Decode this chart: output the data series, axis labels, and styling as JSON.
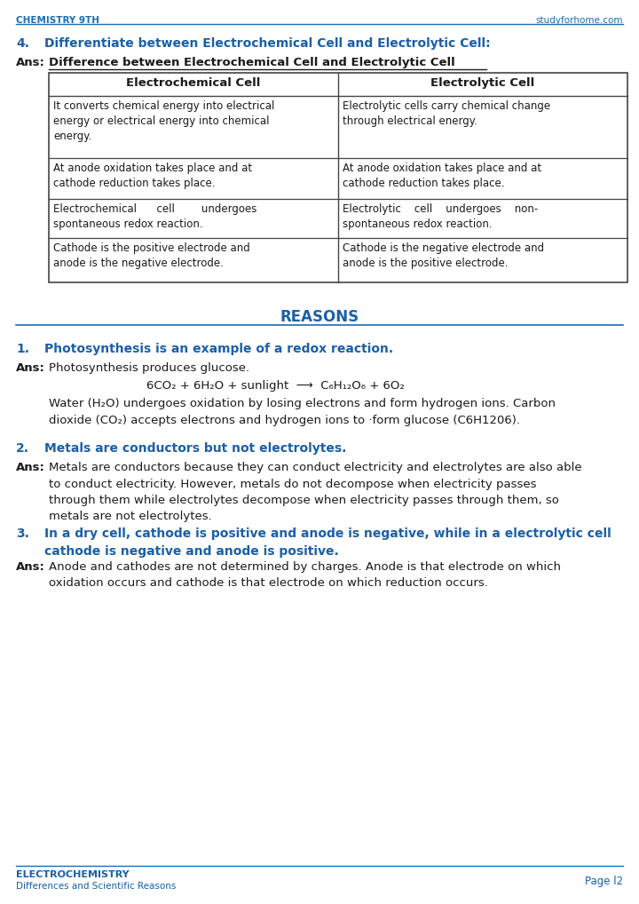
{
  "page_bg": "#ffffff",
  "header_text_left": "CHEMISTRY 9TH",
  "header_text_right": "studyforhome.com",
  "header_color": "#1a6db5",
  "header_line_color": "#1a6db5",
  "q_number": "4.",
  "q_text": "Differentiate between Electrochemical Cell and Electrolytic Cell:",
  "q_color": "#1a5fa8",
  "ans_label": "Ans:",
  "ans_underline_text": "Difference between Electrochemical Cell and Electrolytic Cell",
  "table_header_left": "Electrochemical Cell",
  "table_header_right": "Electrolytic Cell",
  "table_col1": [
    "It converts chemical energy into electrical\nenergy or electrical energy into chemical\nenergy.",
    "At anode oxidation takes place and at\ncathode reduction takes place.",
    "Electrochemical      cell        undergoes\nspontaneous redox reaction.",
    "Cathode is the positive electrode and\nanode is the negative electrode."
  ],
  "table_col2": [
    "Electrolytic cells carry chemical change\nthrough electrical energy.",
    "At anode oxidation takes place and at\ncathode reduction takes place.",
    "Electrolytic    cell    undergoes    non-\nspontaneous redox reaction.",
    "Cathode is the negative electrode and\nanode is the positive electrode."
  ],
  "section_reasons": "REASONS",
  "reason1_num": "1.",
  "reason1_q": "Photosynthesis is an example of a redox reaction.",
  "reason1_ans_intro": "Photosynthesis produces glucose.",
  "reason1_equation": "6CO₂ + 6H₂O + sunlight  ⟶  C₆H₁₂O₆ + 6O₂",
  "reason1_ans_body": "Water (H₂O) undergoes oxidation by losing electrons and form hydrogen ions. Carbon\ndioxide (CO₂) accepts electrons and hydrogen ions to ·form glucose (C6H1206).",
  "reason2_num": "2.",
  "reason2_q": "Metals are conductors but not electrolytes.",
  "reason2_ans": "Metals are conductors because they can conduct electricity and electrolytes are also able\nto conduct electricity. However, metals do not decompose when electricity passes\nthrough them while electrolytes decompose when electricity passes through them, so\nmetals are not electrolytes.",
  "reason3_num": "3.",
  "reason3_q": "In a dry cell, cathode is positive and anode is negative, while in a electrolytic cell\ncathode is negative and anode is positive.",
  "reason3_ans": "Anode and cathodes are not determined by charges. Anode is that electrode on which\noxidation occurs and cathode is that electrode on which reduction occurs.",
  "footer_left_main": "ELECTROCHEMISTRY",
  "footer_left_sub": "Differences and Scientific Reasons",
  "footer_right": "Page l2",
  "text_color": "#1a1a1a",
  "blue_color": "#1a5fa8",
  "table_border_color": "#444444",
  "reasons_line_color": "#1a6db5"
}
